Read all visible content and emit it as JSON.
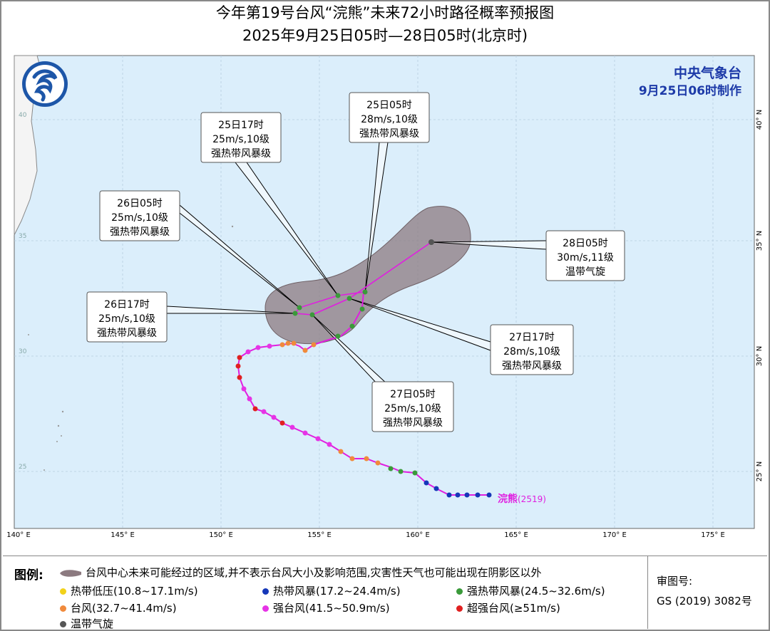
{
  "title": {
    "line1": "今年第19号台风“浣熊”未来72小时路径概率预报图",
    "line2": "2025年9月25日05时—28日05时(北京时)"
  },
  "maker": {
    "org": "中央气象台",
    "date": "9月25日06时制作"
  },
  "map": {
    "lon_ticks": [
      "140° E",
      "145° E",
      "150° E",
      "155° E",
      "160° E",
      "165° E",
      "170° E",
      "175° E"
    ],
    "lat_ticks_right": [
      "40° N",
      "35° N",
      "30° N",
      "25° N"
    ],
    "lat_ticks_left": [
      "40",
      "35",
      "30",
      "25"
    ],
    "typhoon_label": "浣熊",
    "typhoon_code": "(2519)",
    "colors": {
      "sea": "#dbeefb",
      "land": "#f4f4f4",
      "cone": "#8c7a80",
      "forecast_track": "#e01ee0",
      "past_track": "#e01ee0",
      "ts": "#1537b8",
      "sts": "#3a9a3a",
      "ty": "#f08a3c",
      "sty": "#e633e6",
      "super": "#e02020",
      "td": "#f2d21a",
      "et": "#555555"
    },
    "forecast_points": [
      {
        "time": "25日05时",
        "speed": "28m/s,10级",
        "level": "强热带风暴级"
      },
      {
        "time": "25日17时",
        "speed": "25m/s,10级",
        "level": "强热带风暴级"
      },
      {
        "time": "26日05时",
        "speed": "25m/s,10级",
        "level": "强热带风暴级"
      },
      {
        "time": "26日17时",
        "speed": "25m/s,10级",
        "level": "强热带风暴级"
      },
      {
        "time": "27日05时",
        "speed": "25m/s,10级",
        "level": "强热带风暴级"
      },
      {
        "time": "27日17时",
        "speed": "28m/s,10级",
        "level": "强热带风暴级"
      },
      {
        "time": "28日05时",
        "speed": "30m/s,11级",
        "level": "温带气旋"
      }
    ]
  },
  "legend": {
    "title": "图例:",
    "cone_desc": "台风中心未来可能经过的区域,并不表示台风大小及影响范围,灾害性天气也可能出现在阴影区以外",
    "items": [
      {
        "label": "热带低压(10.8~17.1m/s)",
        "color": "#f2d21a"
      },
      {
        "label": "热带风暴(17.2~24.4m/s)",
        "color": "#1537b8"
      },
      {
        "label": "强热带风暴(24.5~32.6m/s)",
        "color": "#3a9a3a"
      },
      {
        "label": "台风(32.7~41.4m/s)",
        "color": "#f08a3c"
      },
      {
        "label": "强台风(41.5~50.9m/s)",
        "color": "#e633e6"
      },
      {
        "label": "超强台风(≥51m/s)",
        "color": "#e02020"
      },
      {
        "label": "温带气旋",
        "color": "#555555"
      }
    ],
    "review_label": "审图号:",
    "review_number": "GS (2019) 3082号"
  }
}
